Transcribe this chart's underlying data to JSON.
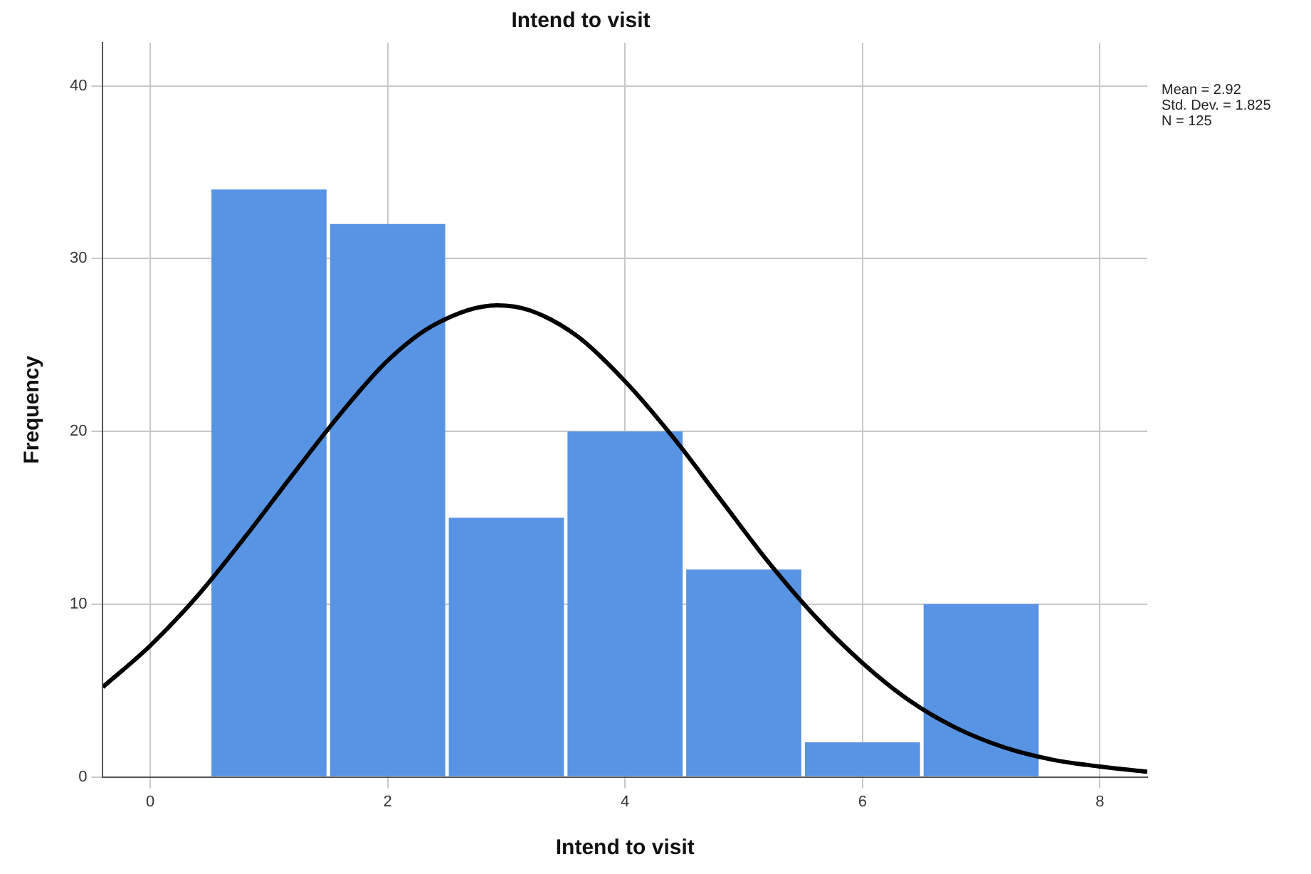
{
  "chart_data": {
    "type": "histogram",
    "title": "Intend to visit",
    "xlabel": "Intend to visit",
    "ylabel": "Frequency",
    "bins": [
      0.5,
      1.5,
      2.5,
      3.5,
      4.5,
      5.5,
      6.5,
      7.5
    ],
    "values": [
      34,
      32,
      15,
      20,
      12,
      2,
      10
    ],
    "color": "#5894e3",
    "series": [
      {
        "type": "line",
        "color": "#000000",
        "x": [
          -0.4,
          0,
          0.4,
          0.8,
          1.2,
          1.6,
          2.0,
          2.4,
          2.92,
          3.2,
          3.6,
          4.0,
          4.4,
          4.8,
          5.2,
          5.6,
          6.0,
          6.4,
          6.8,
          7.2,
          7.6,
          8.0,
          8.4
        ],
        "values": [
          5.2,
          7.6,
          10.5,
          13.9,
          17.5,
          21.0,
          24.1,
          26.2,
          27.3,
          27.0,
          25.5,
          22.9,
          19.7,
          16.1,
          12.5,
          9.3,
          6.6,
          4.4,
          2.8,
          1.7,
          1.0,
          0.6,
          0.3
        ]
      }
    ],
    "xlim": [
      -0.4,
      8.4
    ],
    "xticks": [
      0,
      2,
      4,
      6,
      8
    ],
    "ylim": [
      0,
      42.5
    ],
    "yticks": [
      0,
      10,
      20,
      30,
      40
    ],
    "grid": true,
    "annotations": [
      "Mean = 2.92",
      "Std. Dev. = 1.825",
      "N = 125"
    ]
  }
}
